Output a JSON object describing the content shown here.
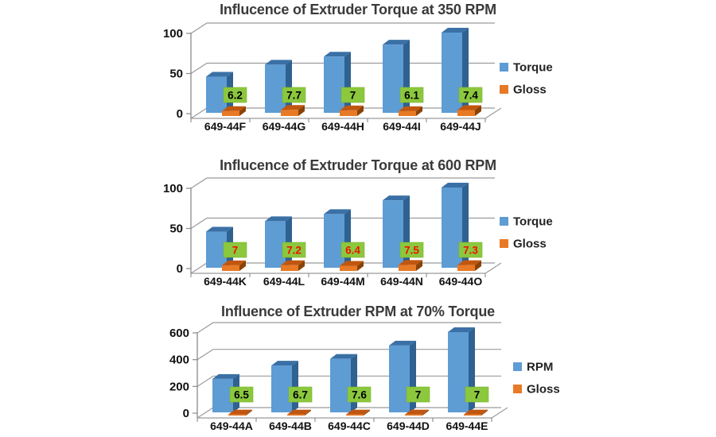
{
  "page": {
    "background": "#FFFFFF"
  },
  "colors": {
    "bar_blue": {
      "front": "#5E9CD4",
      "top": "#3A70A5",
      "side": "#2F6191"
    },
    "bar_orange": {
      "front": "#E87925",
      "top": "#C0560F",
      "side": "#8A4205"
    },
    "label_box": "#8CC83E",
    "label_box_edge": "#7AB32E",
    "gridline": "#9B9B9B",
    "axis": "#8A8A8A",
    "title_color": "#3A3A3A",
    "text": "#111111",
    "red_label": "#EE1100"
  },
  "chart_data": [
    {
      "type": "bar",
      "title": "Influcence of Extruder Torque at 350 RPM",
      "categories": [
        "649-44F",
        "649-44G",
        "649-44H",
        "649-44I",
        "649-44J"
      ],
      "series": [
        {
          "name": "Torque",
          "palette": "blue",
          "values": [
            45,
            60,
            70,
            85,
            100
          ]
        },
        {
          "name": "Gloss",
          "palette": "orange",
          "values": [
            6.2,
            7.7,
            7,
            6.1,
            7.4
          ]
        }
      ],
      "data_labels": {
        "series": "Gloss",
        "values": [
          "6.2",
          "7.7",
          "7",
          "6.1",
          "7.4"
        ],
        "text_color": "#000000"
      },
      "yticks": [
        {
          "v": 0,
          "label": "0"
        },
        {
          "v": 50,
          "label": "50"
        },
        {
          "v": 100,
          "label": "100"
        }
      ],
      "ylim": [
        0,
        100
      ],
      "grid": true,
      "legend_position": "right",
      "legend": [
        {
          "label": "Torque",
          "palette": "blue"
        },
        {
          "label": "Gloss",
          "palette": "orange"
        }
      ]
    },
    {
      "type": "bar",
      "title": "Influcence of Extruder Torque at 600 RPM",
      "categories": [
        "649-44K",
        "649-44L",
        "649-44M",
        "649-44N",
        "649-44O"
      ],
      "series": [
        {
          "name": "Torque",
          "palette": "blue",
          "values": [
            45,
            58,
            67,
            84,
            100
          ]
        },
        {
          "name": "Gloss",
          "palette": "orange",
          "values": [
            7,
            7.2,
            6.4,
            7.5,
            7.3
          ]
        }
      ],
      "data_labels": {
        "series": "Gloss",
        "values": [
          "7",
          "7.2",
          "6.4",
          "7.5",
          "7.3"
        ],
        "text_color": "#EE1100"
      },
      "yticks": [
        {
          "v": 0,
          "label": "0"
        },
        {
          "v": 50,
          "label": "50"
        },
        {
          "v": 100,
          "label": "100"
        }
      ],
      "ylim": [
        0,
        100
      ],
      "grid": true,
      "legend_position": "right",
      "legend": [
        {
          "label": "Torque",
          "palette": "blue"
        },
        {
          "label": "Gloss",
          "palette": "orange"
        }
      ]
    },
    {
      "type": "bar",
      "title": "Influence of Extruder RPM at 70% Torque",
      "categories": [
        "649-44A",
        "649-44B",
        "649-44C",
        "649-44D",
        "649-44E"
      ],
      "series": [
        {
          "name": "RPM",
          "palette": "blue",
          "values": [
            250,
            350,
            400,
            500,
            600
          ]
        },
        {
          "name": "Gloss",
          "palette": "orange",
          "values": [
            6.5,
            6.7,
            7.6,
            7,
            7
          ]
        }
      ],
      "data_labels": {
        "series": "Gloss",
        "values": [
          "6.5",
          "6.7",
          "7.6",
          "7",
          "7"
        ],
        "text_color": "#000000"
      },
      "yticks": [
        {
          "v": 0,
          "label": "0"
        },
        {
          "v": 200,
          "label": "200"
        },
        {
          "v": 400,
          "label": "400"
        },
        {
          "v": 600,
          "label": "600"
        }
      ],
      "ylim": [
        0,
        600
      ],
      "grid": true,
      "legend_position": "right",
      "legend": [
        {
          "label": "RPM",
          "palette": "blue"
        },
        {
          "label": "Gloss",
          "palette": "orange"
        }
      ]
    }
  ]
}
